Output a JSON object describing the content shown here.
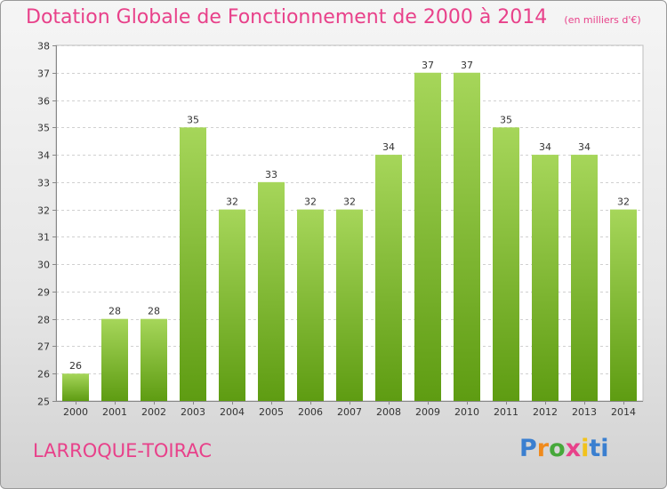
{
  "page": {
    "title": "Dotation Globale de Fonctionnement de 2000 à 2014",
    "subtitle": "(en milliers d'€)",
    "commune": "LARROQUE-TOIRAC",
    "logo": "Proxiti",
    "colors": {
      "title": "#e8418a",
      "bar_top": "#a6d65a",
      "bar_bottom": "#5e9c12",
      "logo": [
        "#3a7fd0",
        "#f08a1c",
        "#46a83a",
        "#e8418a",
        "#f2c21b",
        "#3a7fd0"
      ]
    }
  },
  "chart_data": {
    "type": "bar",
    "title": "Dotation Globale de Fonctionnement de 2000 à 2014",
    "subtitle": "(en milliers d'€)",
    "xlabel": "",
    "ylabel": "",
    "categories": [
      "2000",
      "2001",
      "2002",
      "2003",
      "2004",
      "2005",
      "2006",
      "2007",
      "2008",
      "2009",
      "2010",
      "2011",
      "2012",
      "2013",
      "2014"
    ],
    "values": [
      26,
      28,
      28,
      35,
      32,
      33,
      32,
      32,
      34,
      37,
      37,
      35,
      34,
      34,
      32
    ],
    "ylim": [
      25,
      38
    ],
    "yticks": [
      25,
      26,
      27,
      28,
      29,
      30,
      31,
      32,
      33,
      34,
      35,
      36,
      37,
      38
    ],
    "grid": true,
    "legend": "none"
  }
}
